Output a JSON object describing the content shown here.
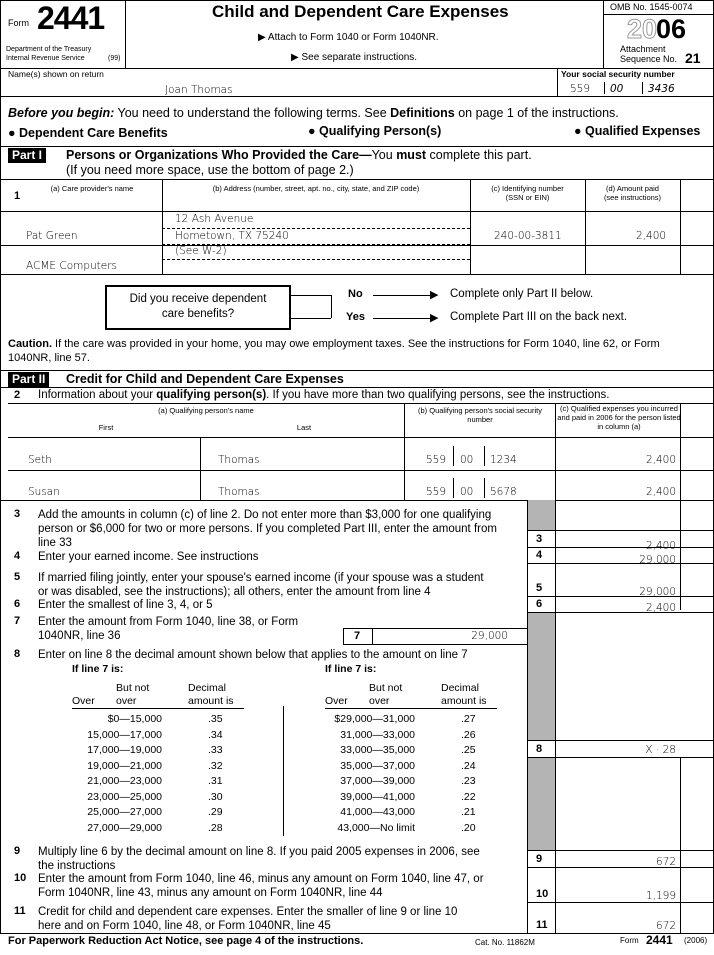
{
  "header": {
    "form_label": "Form",
    "form_number": "2441",
    "dept": "Department of the Treasury",
    "irs": "Internal Revenue Service",
    "irs_code": "(99)",
    "title": "Child and Dependent Care Expenses",
    "attach": "▶ Attach to Form 1040 or Form 1040NR.",
    "see": "▶ See separate instructions.",
    "omb": "OMB No. 1545-0074",
    "year_outline": "20",
    "year_bold": "06",
    "attachment": "Attachment",
    "sequence": "Sequence No.",
    "sequence_no": "21"
  },
  "taxpayer": {
    "name_label": "Name(s) shown on return",
    "name": "Joan Thomas",
    "ssn_label": "Your social security number",
    "ssn": [
      "559",
      "00",
      "3436"
    ]
  },
  "before": {
    "lead": "Before you begin:",
    "text": " You need to understand the following terms. See ",
    "def": "Definitions",
    "text2": " on page 1 of the instructions.",
    "terms": [
      "● Dependent Care Benefits",
      "● Qualifying Person(s)",
      "● Qualified Expenses"
    ]
  },
  "part1": {
    "tag": "Part I",
    "title": "Persons or Organizations Who Provided the Care—",
    "title2": "You ",
    "must": "must",
    "title3": " complete this part.",
    "sub": "(If you need more space, use the bottom of page 2.)",
    "line": "1",
    "cols": [
      "(a) Care provider's name",
      "(b) Address (number, street, apt. no., city, state, and ZIP code)",
      "(c) Identifying number (SSN or EIN)",
      "(d) Amount paid (see instructions)"
    ],
    "rows": [
      {
        "name": "Pat Green",
        "address1": "12 Ash Avenue",
        "address2": "Hometown, TX 75240",
        "id": "240-00-3811",
        "amount": "2,400"
      },
      {
        "name": "ACME Computers",
        "address1": "(See W-2)",
        "address2": "",
        "id": "",
        "amount": ""
      }
    ],
    "question": "Did you receive dependent care benefits?",
    "no": "No",
    "yes": "Yes",
    "no_action": "Complete only Part II below.",
    "yes_action": "Complete Part III on the back next.",
    "caution_lead": "Caution.",
    "caution": " If the care was provided in your home, you may owe employment taxes. See the instructions for Form 1040, line 62, or Form",
    "caution2": "1040NR, line 57."
  },
  "part2": {
    "tag": "Part II",
    "title": "Credit for Child and Dependent Care Expenses",
    "line2": "2",
    "line2_text": "Information about your ",
    "line2_bold": "qualifying person(s)",
    "line2_rest": ". If you have more than two qualifying persons, see the instructions.",
    "col_a": "(a) Qualifying person's name",
    "first": "First",
    "last": "Last",
    "col_b": "(b) Qualifying person's social security number",
    "col_c": "(c) Qualified expenses you incurred and paid in 2006 for the person listed in column (a)",
    "persons": [
      {
        "first": "Seth",
        "last": "Thomas",
        "ssn": [
          "559",
          "00",
          "1234"
        ],
        "amount": "2,400"
      },
      {
        "first": "Susan",
        "last": "Thomas",
        "ssn": [
          "559",
          "00",
          "5678"
        ],
        "amount": "2,400"
      }
    ],
    "lines": [
      {
        "n": "3",
        "text": [
          "Add the amounts in column (c) of line 2. Do not enter more than $3,000 for one qualifying",
          "person or $6,000 for two or more persons. If you completed Part III, enter the amount from",
          "line 33"
        ],
        "value": "2,400"
      },
      {
        "n": "4",
        "text": [
          "Enter your earned income. See instructions"
        ],
        "value": "29,000"
      },
      {
        "n": "5",
        "text": [
          "If married filing jointly, enter your spouse's earned income (if your spouse was a student",
          "or was disabled, see the instructions); all others, enter the amount from line 4"
        ],
        "value": "29,000"
      },
      {
        "n": "6",
        "text": [
          "Enter the smallest of line 3, 4, or 5"
        ],
        "value": "2,400"
      },
      {
        "n": "7",
        "text": [
          "Enter the amount from Form 1040, line 38, or Form",
          "1040NR, line 36"
        ],
        "value": "29,000"
      },
      {
        "n": "8",
        "text": [
          "Enter on line 8 the decimal amount shown below that applies to the amount on line 7"
        ],
        "value": "X · 28"
      },
      {
        "n": "9",
        "text": [
          "Multiply line 6 by the decimal amount on line 8. If you paid 2005 expenses in 2006, see",
          "the instructions"
        ],
        "value": "672"
      },
      {
        "n": "10",
        "text": [
          "Enter the amount from Form 1040, line 46, minus any amount on Form 1040, line 47, or",
          "Form 1040NR, line 43, minus any amount on Form 1040NR, line 44"
        ],
        "value": "1,199"
      },
      {
        "n": "11",
        "text": [
          "Credit for child and dependent care expenses. Enter the smaller of line 9 or line 10",
          "here and on Form 1040, line 48, or Form 1040NR, line 45"
        ],
        "value": "672"
      }
    ],
    "table_heading": "If line 7 is:",
    "th_over": "Over",
    "th_butnot": "But not",
    "th_over2": "over",
    "th_dec": "Decimal",
    "th_amt": "amount is",
    "table_left": [
      [
        "$0—15,000",
        ".35"
      ],
      [
        "15,000—17,000",
        ".34"
      ],
      [
        "17,000—19,000",
        ".33"
      ],
      [
        "19,000—21,000",
        ".32"
      ],
      [
        "21,000—23,000",
        ".31"
      ],
      [
        "23,000—25,000",
        ".30"
      ],
      [
        "25,000—27,000",
        ".29"
      ],
      [
        "27,000—29,000",
        ".28"
      ]
    ],
    "table_right": [
      [
        "$29,000—31,000",
        ".27"
      ],
      [
        "31,000—33,000",
        ".26"
      ],
      [
        "33,000—35,000",
        ".25"
      ],
      [
        "35,000—37,000",
        ".24"
      ],
      [
        "37,000—39,000",
        ".23"
      ],
      [
        "39,000—41,000",
        ".22"
      ],
      [
        "41,000—43,000",
        ".21"
      ],
      [
        "43,000—No limit",
        ".20"
      ]
    ]
  },
  "footer": {
    "notice": "For Paperwork Reduction Act Notice, see page 4 of the instructions.",
    "cat": "Cat. No. 11862M",
    "form": "Form",
    "form_no": "2441",
    "year": "(2006)"
  }
}
